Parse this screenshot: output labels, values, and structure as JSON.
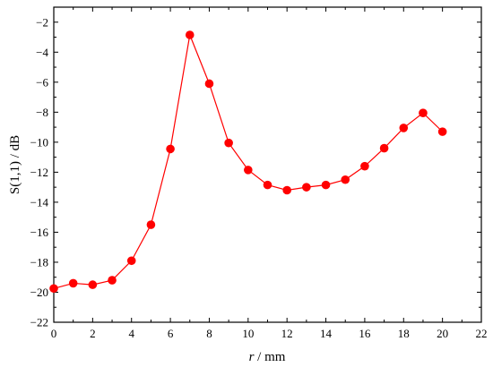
{
  "chart_data": {
    "type": "line",
    "title": "",
    "xlabel_italic": "r",
    "xlabel_rest": " / mm",
    "ylabel": "S(1,1) / dB",
    "xlim": [
      0,
      22
    ],
    "ylim": [
      -22,
      -1
    ],
    "xticks": [
      0,
      2,
      4,
      6,
      8,
      10,
      12,
      14,
      16,
      18,
      20,
      22
    ],
    "yticks": [
      -22,
      -20,
      -18,
      -16,
      -14,
      -12,
      -10,
      -8,
      -6,
      -4,
      -2
    ],
    "grid": false,
    "legend": "none",
    "series": [
      {
        "color": "#ff0000",
        "marker": "circle",
        "x": [
          0,
          1,
          2,
          3,
          4,
          5,
          6,
          7,
          8,
          9,
          10,
          11,
          12,
          13,
          14,
          15,
          16,
          17,
          18,
          19,
          20
        ],
        "y": [
          -19.75,
          -19.4,
          -19.5,
          -19.2,
          -17.9,
          -15.5,
          -10.45,
          -2.85,
          -6.1,
          -10.05,
          -11.85,
          -12.85,
          -13.2,
          -13.0,
          -12.85,
          -12.5,
          -11.6,
          -10.4,
          -9.05,
          -8.05,
          -9.3
        ]
      }
    ]
  }
}
